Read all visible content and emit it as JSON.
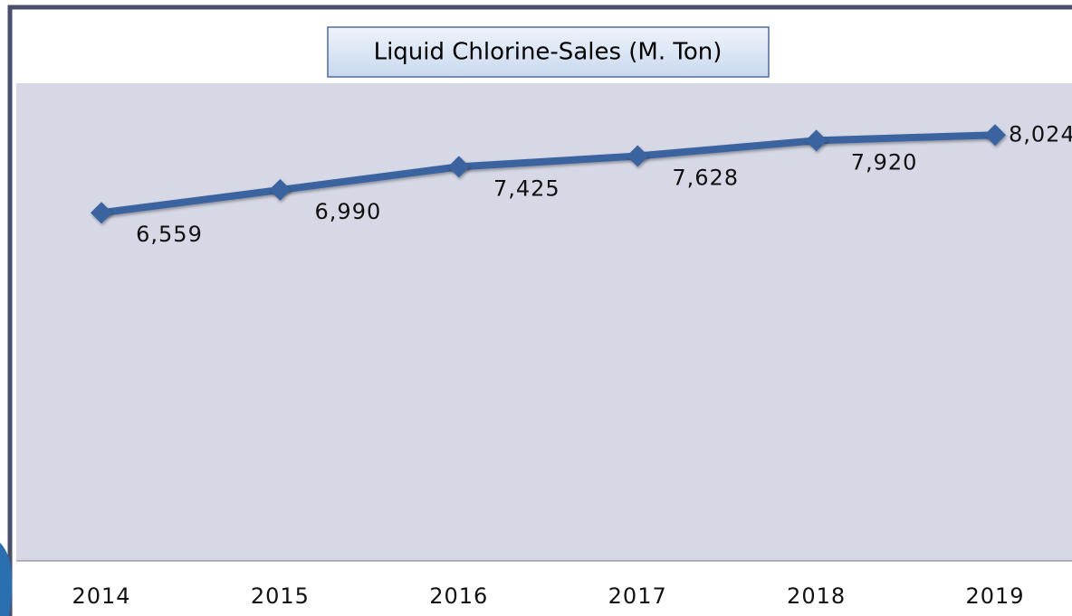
{
  "chart_data": {
    "type": "line",
    "title": "Liquid Chlorine-Sales (M. Ton)",
    "categories": [
      "2014",
      "2015",
      "2016",
      "2017",
      "2018",
      "2019"
    ],
    "values": [
      6559,
      6990,
      7425,
      7628,
      7920,
      8024
    ],
    "value_labels": [
      "6,559",
      "6,990",
      "7,425",
      "7,628",
      "7,920",
      "8,024"
    ],
    "color": "#3a64a0",
    "ylim": [
      0,
      9000
    ]
  }
}
